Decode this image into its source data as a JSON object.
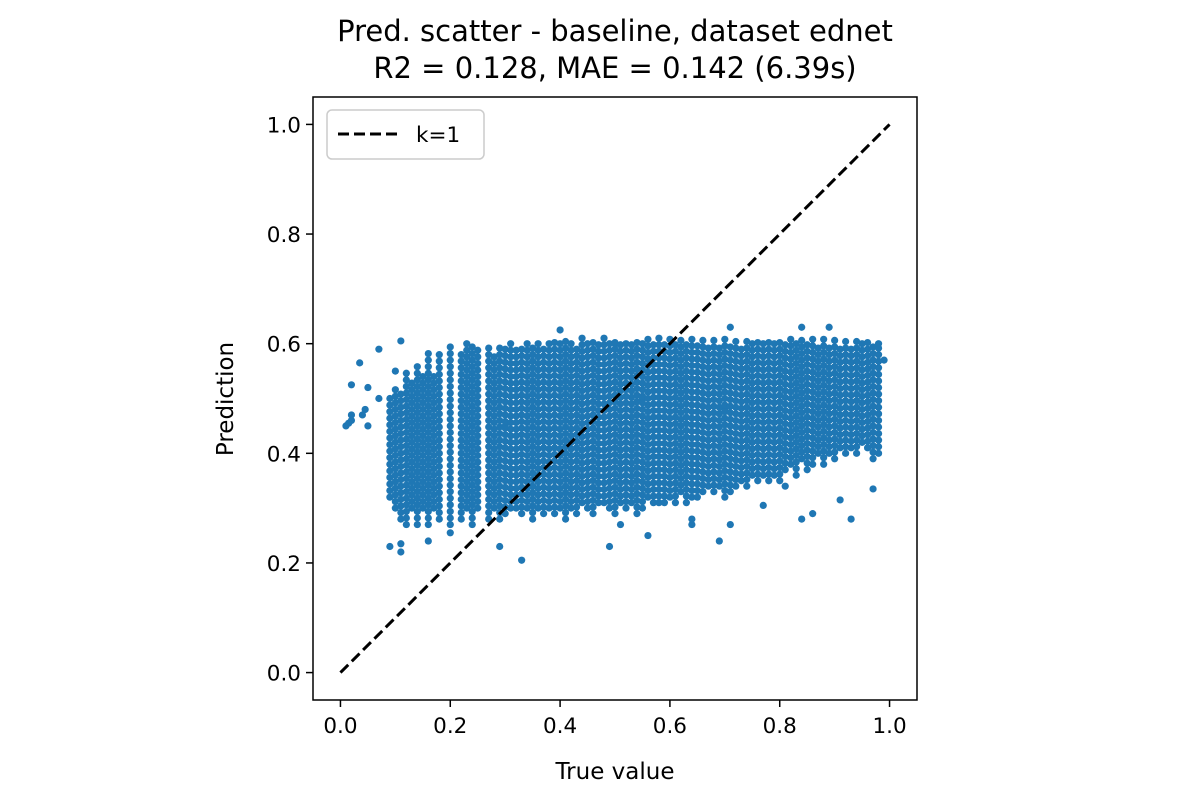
{
  "chart_data": {
    "type": "scatter",
    "title": "Pred. scatter - baseline, dataset ednet",
    "subtitle": "R2 = 0.128, MAE = 0.142 (6.39s)",
    "xlabel": "True value",
    "ylabel": "Prediction",
    "xlim": [
      -0.05,
      1.05
    ],
    "ylim": [
      -0.05,
      1.05
    ],
    "x_ticks": [
      0.0,
      0.2,
      0.4,
      0.6,
      0.8,
      1.0
    ],
    "x_tick_labels": [
      "0.0",
      "0.2",
      "0.4",
      "0.6",
      "0.8",
      "1.0"
    ],
    "y_ticks": [
      0.0,
      0.2,
      0.4,
      0.6,
      0.8,
      1.0
    ],
    "y_tick_labels": [
      "0.0",
      "0.2",
      "0.4",
      "0.6",
      "0.8",
      "1.0"
    ],
    "grid": false,
    "legend": {
      "placement": "top-left",
      "entries": [
        "k=1"
      ]
    },
    "series": [
      {
        "kind": "scatter",
        "color": "#1f77b4",
        "points": [
          {
            "x": 0.01,
            "y": 0.45
          },
          {
            "x": 0.015,
            "y": 0.455
          },
          {
            "x": 0.02,
            "y": 0.525
          },
          {
            "x": 0.02,
            "y": 0.47
          },
          {
            "x": 0.02,
            "y": 0.46
          },
          {
            "x": 0.035,
            "y": 0.565
          },
          {
            "x": 0.04,
            "y": 0.47
          },
          {
            "x": 0.045,
            "y": 0.48
          },
          {
            "x": 0.05,
            "y": 0.45
          },
          {
            "x": 0.05,
            "y": 0.52
          },
          {
            "x": 0.07,
            "y": 0.59
          },
          {
            "x": 0.07,
            "y": 0.5
          },
          {
            "x": 0.09,
            "y": 0.23
          },
          {
            "x": 0.1,
            "y": 0.55
          },
          {
            "x": 0.11,
            "y": 0.605
          },
          {
            "x": 0.11,
            "y": 0.235
          },
          {
            "x": 0.11,
            "y": 0.22
          },
          {
            "x": 0.16,
            "y": 0.24
          },
          {
            "x": 0.2,
            "y": 0.255
          },
          {
            "x": 0.29,
            "y": 0.23
          },
          {
            "x": 0.33,
            "y": 0.205
          },
          {
            "x": 0.4,
            "y": 0.625
          },
          {
            "x": 0.49,
            "y": 0.23
          },
          {
            "x": 0.51,
            "y": 0.27
          },
          {
            "x": 0.56,
            "y": 0.25
          },
          {
            "x": 0.64,
            "y": 0.27
          },
          {
            "x": 0.64,
            "y": 0.28
          },
          {
            "x": 0.69,
            "y": 0.24
          },
          {
            "x": 0.71,
            "y": 0.27
          },
          {
            "x": 0.71,
            "y": 0.63
          },
          {
            "x": 0.77,
            "y": 0.305
          },
          {
            "x": 0.81,
            "y": 0.34
          },
          {
            "x": 0.84,
            "y": 0.63
          },
          {
            "x": 0.84,
            "y": 0.28
          },
          {
            "x": 0.86,
            "y": 0.29
          },
          {
            "x": 0.89,
            "y": 0.63
          },
          {
            "x": 0.91,
            "y": 0.315
          },
          {
            "x": 0.93,
            "y": 0.28
          },
          {
            "x": 0.97,
            "y": 0.335
          },
          {
            "x": 0.98,
            "y": 0.6
          },
          {
            "x": 0.99,
            "y": 0.57
          },
          {
            "x": 0.5,
            "y": 0.6
          },
          {
            "x": 0.55,
            "y": 0.5
          },
          {
            "x": 0.3,
            "y": 0.45
          },
          {
            "x": 0.7,
            "y": 0.48
          }
        ],
        "columns": [
          {
            "x": 0.09,
            "ymin": 0.32,
            "ymax": 0.5
          },
          {
            "x": 0.1,
            "ymin": 0.3,
            "ymax": 0.52
          },
          {
            "x": 0.11,
            "ymin": 0.28,
            "ymax": 0.51
          },
          {
            "x": 0.12,
            "ymin": 0.27,
            "ymax": 0.55
          },
          {
            "x": 0.13,
            "ymin": 0.3,
            "ymax": 0.53
          },
          {
            "x": 0.14,
            "ymin": 0.27,
            "ymax": 0.56
          },
          {
            "x": 0.15,
            "ymin": 0.3,
            "ymax": 0.55
          },
          {
            "x": 0.16,
            "ymin": 0.27,
            "ymax": 0.59
          },
          {
            "x": 0.17,
            "ymin": 0.3,
            "ymax": 0.55
          },
          {
            "x": 0.18,
            "ymin": 0.28,
            "ymax": 0.59
          },
          {
            "x": 0.2,
            "ymin": 0.27,
            "ymax": 0.6
          },
          {
            "x": 0.22,
            "ymin": 0.28,
            "ymax": 0.58
          },
          {
            "x": 0.23,
            "ymin": 0.3,
            "ymax": 0.6
          },
          {
            "x": 0.24,
            "ymin": 0.27,
            "ymax": 0.6
          },
          {
            "x": 0.25,
            "ymin": 0.3,
            "ymax": 0.59
          },
          {
            "x": 0.27,
            "ymin": 0.28,
            "ymax": 0.6
          },
          {
            "x": 0.28,
            "ymin": 0.3,
            "ymax": 0.58
          },
          {
            "x": 0.29,
            "ymin": 0.28,
            "ymax": 0.6
          },
          {
            "x": 0.3,
            "ymin": 0.29,
            "ymax": 0.6
          },
          {
            "x": 0.31,
            "ymin": 0.3,
            "ymax": 0.6
          },
          {
            "x": 0.32,
            "ymin": 0.3,
            "ymax": 0.59
          },
          {
            "x": 0.33,
            "ymin": 0.29,
            "ymax": 0.6
          },
          {
            "x": 0.34,
            "ymin": 0.3,
            "ymax": 0.6
          },
          {
            "x": 0.35,
            "ymin": 0.28,
            "ymax": 0.6
          },
          {
            "x": 0.36,
            "ymin": 0.3,
            "ymax": 0.61
          },
          {
            "x": 0.37,
            "ymin": 0.29,
            "ymax": 0.6
          },
          {
            "x": 0.38,
            "ymin": 0.3,
            "ymax": 0.6
          },
          {
            "x": 0.39,
            "ymin": 0.29,
            "ymax": 0.61
          },
          {
            "x": 0.4,
            "ymin": 0.3,
            "ymax": 0.6
          },
          {
            "x": 0.41,
            "ymin": 0.28,
            "ymax": 0.61
          },
          {
            "x": 0.42,
            "ymin": 0.3,
            "ymax": 0.6
          },
          {
            "x": 0.43,
            "ymin": 0.29,
            "ymax": 0.6
          },
          {
            "x": 0.44,
            "ymin": 0.31,
            "ymax": 0.61
          },
          {
            "x": 0.45,
            "ymin": 0.3,
            "ymax": 0.6
          },
          {
            "x": 0.46,
            "ymin": 0.29,
            "ymax": 0.61
          },
          {
            "x": 0.47,
            "ymin": 0.31,
            "ymax": 0.6
          },
          {
            "x": 0.48,
            "ymin": 0.31,
            "ymax": 0.61
          },
          {
            "x": 0.49,
            "ymin": 0.3,
            "ymax": 0.6
          },
          {
            "x": 0.5,
            "ymin": 0.29,
            "ymax": 0.61
          },
          {
            "x": 0.51,
            "ymin": 0.31,
            "ymax": 0.6
          },
          {
            "x": 0.52,
            "ymin": 0.3,
            "ymax": 0.61
          },
          {
            "x": 0.53,
            "ymin": 0.31,
            "ymax": 0.6
          },
          {
            "x": 0.54,
            "ymin": 0.29,
            "ymax": 0.61
          },
          {
            "x": 0.55,
            "ymin": 0.3,
            "ymax": 0.6
          },
          {
            "x": 0.56,
            "ymin": 0.32,
            "ymax": 0.61
          },
          {
            "x": 0.57,
            "ymin": 0.31,
            "ymax": 0.6
          },
          {
            "x": 0.58,
            "ymin": 0.31,
            "ymax": 0.61
          },
          {
            "x": 0.59,
            "ymin": 0.31,
            "ymax": 0.6
          },
          {
            "x": 0.6,
            "ymin": 0.32,
            "ymax": 0.61
          },
          {
            "x": 0.61,
            "ymin": 0.31,
            "ymax": 0.6
          },
          {
            "x": 0.62,
            "ymin": 0.33,
            "ymax": 0.61
          },
          {
            "x": 0.63,
            "ymin": 0.31,
            "ymax": 0.6
          },
          {
            "x": 0.64,
            "ymin": 0.32,
            "ymax": 0.61
          },
          {
            "x": 0.65,
            "ymin": 0.32,
            "ymax": 0.6
          },
          {
            "x": 0.66,
            "ymin": 0.33,
            "ymax": 0.61
          },
          {
            "x": 0.67,
            "ymin": 0.34,
            "ymax": 0.6
          },
          {
            "x": 0.68,
            "ymin": 0.33,
            "ymax": 0.61
          },
          {
            "x": 0.69,
            "ymin": 0.34,
            "ymax": 0.6
          },
          {
            "x": 0.7,
            "ymin": 0.32,
            "ymax": 0.61
          },
          {
            "x": 0.71,
            "ymin": 0.33,
            "ymax": 0.6
          },
          {
            "x": 0.72,
            "ymin": 0.34,
            "ymax": 0.61
          },
          {
            "x": 0.73,
            "ymin": 0.35,
            "ymax": 0.6
          },
          {
            "x": 0.74,
            "ymin": 0.34,
            "ymax": 0.61
          },
          {
            "x": 0.75,
            "ymin": 0.36,
            "ymax": 0.6
          },
          {
            "x": 0.76,
            "ymin": 0.35,
            "ymax": 0.61
          },
          {
            "x": 0.77,
            "ymin": 0.36,
            "ymax": 0.6
          },
          {
            "x": 0.78,
            "ymin": 0.35,
            "ymax": 0.61
          },
          {
            "x": 0.79,
            "ymin": 0.36,
            "ymax": 0.6
          },
          {
            "x": 0.8,
            "ymin": 0.35,
            "ymax": 0.61
          },
          {
            "x": 0.81,
            "ymin": 0.37,
            "ymax": 0.6
          },
          {
            "x": 0.82,
            "ymin": 0.38,
            "ymax": 0.61
          },
          {
            "x": 0.83,
            "ymin": 0.36,
            "ymax": 0.6
          },
          {
            "x": 0.84,
            "ymin": 0.39,
            "ymax": 0.61
          },
          {
            "x": 0.85,
            "ymin": 0.37,
            "ymax": 0.6
          },
          {
            "x": 0.86,
            "ymin": 0.38,
            "ymax": 0.61
          },
          {
            "x": 0.87,
            "ymin": 0.4,
            "ymax": 0.6
          },
          {
            "x": 0.88,
            "ymin": 0.38,
            "ymax": 0.61
          },
          {
            "x": 0.89,
            "ymin": 0.4,
            "ymax": 0.6
          },
          {
            "x": 0.9,
            "ymin": 0.39,
            "ymax": 0.61
          },
          {
            "x": 0.91,
            "ymin": 0.41,
            "ymax": 0.6
          },
          {
            "x": 0.92,
            "ymin": 0.4,
            "ymax": 0.61
          },
          {
            "x": 0.93,
            "ymin": 0.41,
            "ymax": 0.6
          },
          {
            "x": 0.94,
            "ymin": 0.4,
            "ymax": 0.61
          },
          {
            "x": 0.95,
            "ymin": 0.42,
            "ymax": 0.6
          },
          {
            "x": 0.96,
            "ymin": 0.41,
            "ymax": 0.61
          },
          {
            "x": 0.97,
            "ymin": 0.39,
            "ymax": 0.6
          },
          {
            "x": 0.98,
            "ymin": 0.4,
            "ymax": 0.6
          }
        ]
      },
      {
        "kind": "line",
        "name": "k=1",
        "color": "#000000",
        "dash": "dashed",
        "x": [
          0.0,
          1.0
        ],
        "y": [
          0.0,
          1.0
        ]
      }
    ]
  }
}
